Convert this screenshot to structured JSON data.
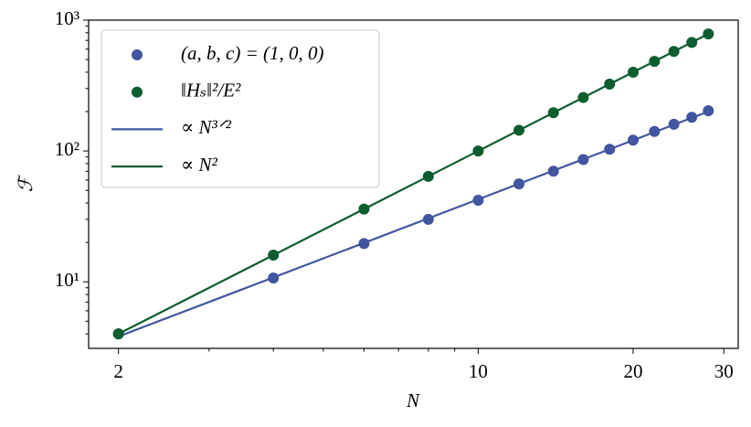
{
  "chart_data": {
    "type": "scatter",
    "xlabel": "N",
    "ylabel": "ℱ",
    "xscale": "log",
    "yscale": "log",
    "xlim": [
      1.75,
      32
    ],
    "ylim": [
      3.1,
      1000
    ],
    "xticks": [
      2,
      10,
      20,
      30
    ],
    "xminorticks": [
      3,
      4,
      5,
      6,
      7,
      8,
      9
    ],
    "yticks": [
      {
        "value": 10,
        "label": "10¹"
      },
      {
        "value": 100,
        "label": "10²"
      },
      {
        "value": 1000,
        "label": "10³"
      }
    ],
    "yminorticks": [
      4,
      5,
      6,
      7,
      8,
      9,
      20,
      30,
      40,
      50,
      60,
      70,
      80,
      90,
      200,
      300,
      400,
      500,
      600,
      700,
      800,
      900
    ],
    "legend": "upper left",
    "series": [
      {
        "name": "(a, b, c) = (1, 0, 0)",
        "style": "marker",
        "color": "#4155a0",
        "x": [
          2,
          4,
          6,
          8,
          10,
          12,
          14,
          16,
          18,
          20,
          22,
          24,
          26,
          28
        ],
        "values": [
          4,
          10.7,
          19.6,
          30,
          42,
          56,
          70,
          86,
          103,
          121,
          141,
          160,
          181,
          203
        ]
      },
      {
        "name": "‖Hₛ‖²/E²",
        "style": "marker",
        "color": "#0d5e2f",
        "x": [
          2,
          4,
          6,
          8,
          10,
          12,
          14,
          16,
          18,
          20,
          22,
          24,
          26,
          28
        ],
        "values": [
          4,
          16,
          36,
          64,
          100,
          144,
          196,
          256,
          324,
          400,
          484,
          576,
          676,
          784
        ]
      },
      {
        "name": "∝ N³ᐟ²",
        "style": "line",
        "color": "#4155a0",
        "x": [
          2,
          28
        ],
        "values": [
          3.82,
          200
        ]
      },
      {
        "name": "∝ N²",
        "style": "line",
        "color": "#0d5e2f",
        "x": [
          2,
          28
        ],
        "values": [
          4,
          784
        ]
      }
    ]
  }
}
